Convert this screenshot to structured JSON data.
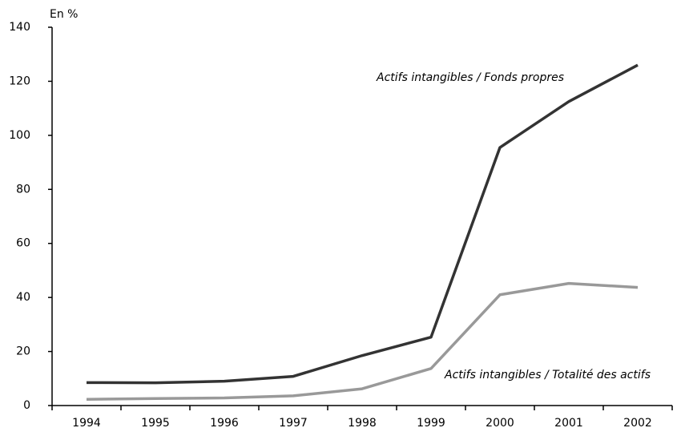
{
  "chart_data": {
    "type": "line",
    "y_axis_label": "En %",
    "categories": [
      "1994",
      "1995",
      "1996",
      "1997",
      "1998",
      "1999",
      "2000",
      "2001",
      "2002"
    ],
    "series": [
      {
        "name": "Actifs intangibles / Fonds propres",
        "color": "#333333",
        "values": [
          8.5,
          8.4,
          9,
          10.8,
          18.5,
          25.3,
          95.5,
          112.5,
          126
        ]
      },
      {
        "name": "Actifs intangibles / Totalité des actifs",
        "color": "#999999",
        "values": [
          2.3,
          2.6,
          2.8,
          3.6,
          6.2,
          13.7,
          41,
          45.2,
          43.7
        ]
      }
    ],
    "ylim": [
      0,
      140
    ],
    "yticks": [
      0,
      20,
      40,
      60,
      80,
      100,
      120,
      140
    ],
    "grid": false
  }
}
